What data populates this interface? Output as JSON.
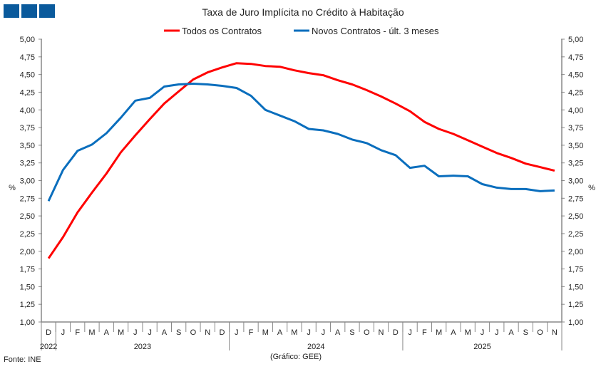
{
  "chart_data": {
    "type": "line",
    "title": "Taxa de Juro Implícita  no Crédito à Habitação",
    "ylabel_left": "%",
    "ylabel_right": "%",
    "ylim": [
      1.0,
      5.0
    ],
    "ytick_step": 0.25,
    "yticks": [
      "1,00",
      "1,25",
      "1,50",
      "1,75",
      "2,00",
      "2,25",
      "2,50",
      "2,75",
      "3,00",
      "3,25",
      "3,50",
      "3,75",
      "4,00",
      "4,25",
      "4,50",
      "4,75",
      "5,00"
    ],
    "categories": [
      "D",
      "J",
      "F",
      "M",
      "A",
      "M",
      "J",
      "J",
      "A",
      "S",
      "O",
      "N",
      "D",
      "J",
      "F",
      "M",
      "A",
      "M",
      "J",
      "J",
      "A",
      "S",
      "O",
      "N",
      "D",
      "J",
      "F",
      "M",
      "A",
      "M",
      "J",
      "J",
      "A",
      "S",
      "O",
      "N"
    ],
    "years": [
      {
        "label": "2022",
        "months": 1
      },
      {
        "label": "2023",
        "months": 12
      },
      {
        "label": "2024",
        "months": 12
      },
      {
        "label": "2025",
        "months": 11
      }
    ],
    "grid": false,
    "legend_position": "top",
    "series": [
      {
        "name": "Todos os Contratos",
        "color": "#ff0000",
        "values": [
          1.9,
          2.2,
          2.55,
          2.83,
          3.1,
          3.4,
          3.64,
          3.87,
          4.09,
          4.26,
          4.43,
          4.53,
          4.6,
          4.66,
          4.65,
          4.62,
          4.61,
          4.56,
          4.52,
          4.49,
          4.42,
          4.36,
          4.28,
          4.19,
          4.09,
          3.98,
          3.83,
          3.73,
          3.66,
          3.57,
          3.48,
          3.39,
          3.32,
          3.24,
          3.19,
          3.14
        ]
      },
      {
        "name": "Novos Contratos - últ. 3 meses",
        "color": "#0a6ebd",
        "values": [
          2.71,
          3.15,
          3.42,
          3.51,
          3.67,
          3.89,
          4.13,
          4.17,
          4.33,
          4.36,
          4.37,
          4.36,
          4.34,
          4.31,
          4.2,
          4.0,
          3.92,
          3.84,
          3.73,
          3.71,
          3.66,
          3.58,
          3.53,
          3.43,
          3.36,
          3.18,
          3.21,
          3.06,
          3.07,
          3.06,
          2.95,
          2.9,
          2.88,
          2.88,
          2.85,
          2.86
        ]
      }
    ]
  },
  "footer": {
    "source": "Fonte: INE",
    "credit": "(Gráfico: GEE)"
  },
  "logo_color": "#0a5a9c"
}
